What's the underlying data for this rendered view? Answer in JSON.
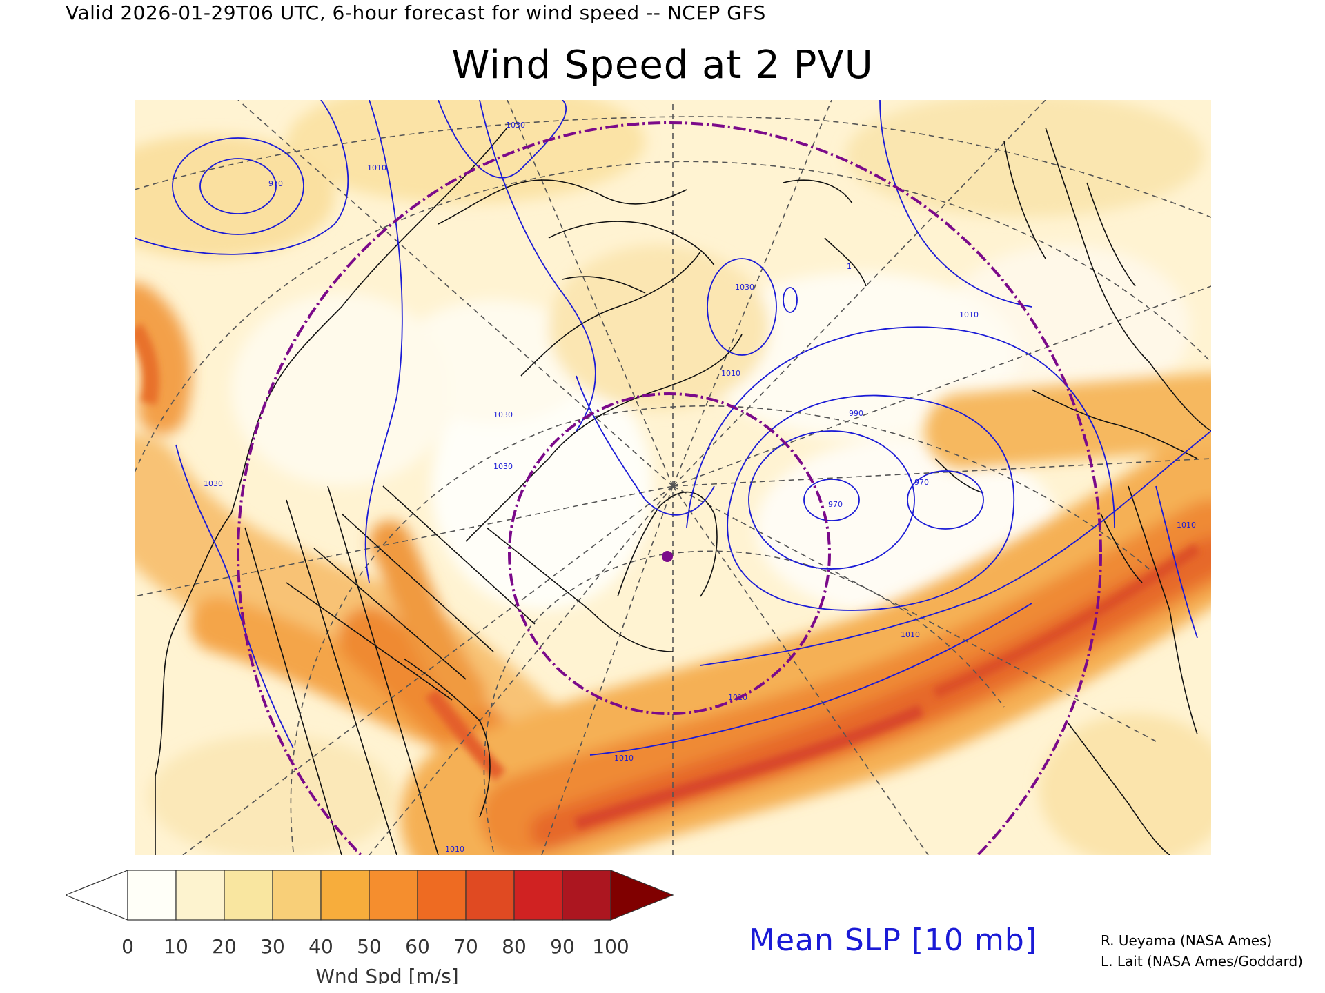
{
  "header": {
    "valid_line": "Valid 2026-01-29T06 UTC, 6-hour forecast for wind speed -- NCEP GFS",
    "title": "Wind Speed at 2 PVU"
  },
  "map": {
    "isobar_labels": [
      "1030",
      "1010",
      "970",
      "1030",
      "1030",
      "1030",
      "1030",
      "1010",
      "1010",
      "990",
      "970",
      "970",
      "1010",
      "1010",
      "1010",
      "1010",
      "1010",
      "1"
    ],
    "marker_color": "#7b0a8a",
    "isobar_color": "#1a1ad6",
    "circle_color": "#7b0a8a"
  },
  "colorbar": {
    "label": "Wnd Spd [m/s]",
    "ticks": [
      "0",
      "10",
      "20",
      "30",
      "40",
      "50",
      "60",
      "70",
      "80",
      "90",
      "100"
    ],
    "colors": [
      "#fffff8",
      "#fdf3cf",
      "#f9e6a0",
      "#f8cf78",
      "#f7ad3c",
      "#f58e2e",
      "#ee6b22",
      "#e04a22",
      "#d02222",
      "#ac1620",
      "#800000"
    ],
    "under_color": "#ffffff"
  },
  "overlay": {
    "label": "Mean SLP [10 mb]"
  },
  "credits": {
    "line1": "R. Ueyama (NASA Ames)",
    "line2": "L. Lait (NASA Ames/Goddard)"
  }
}
